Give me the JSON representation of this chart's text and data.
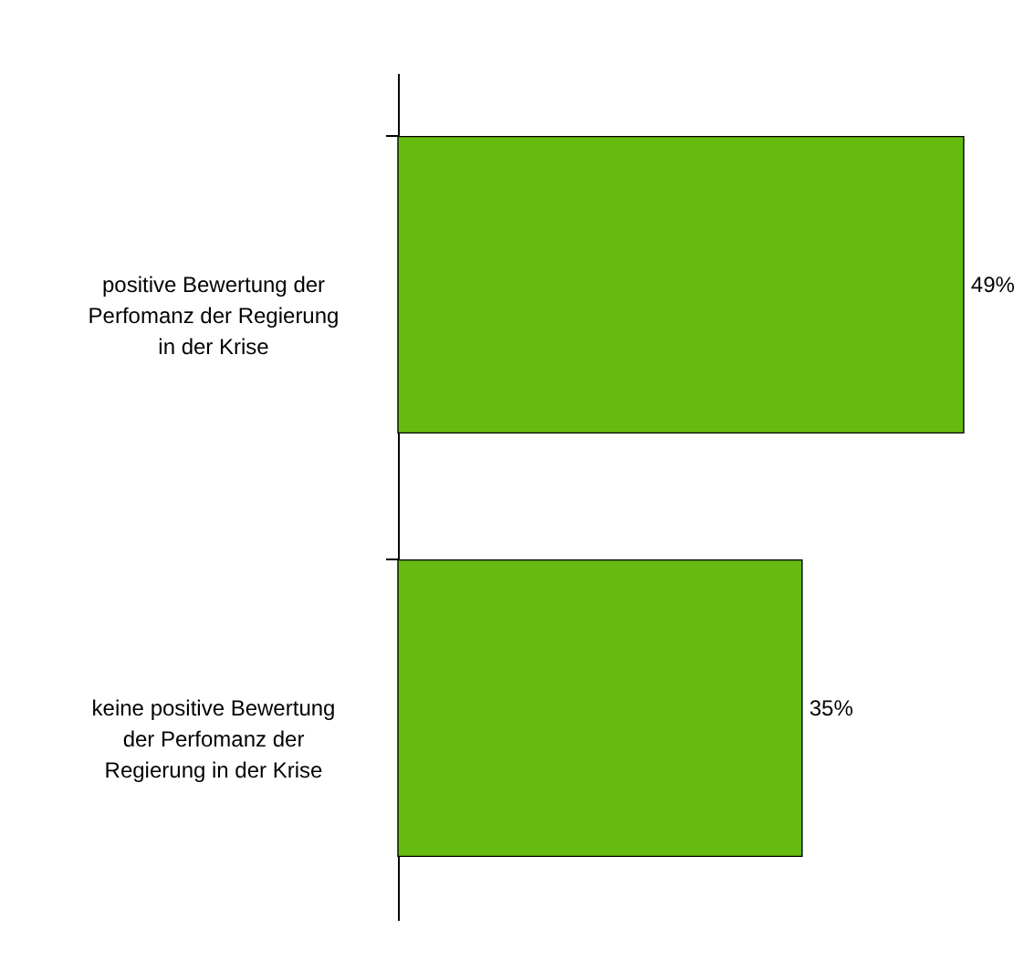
{
  "chart_data": {
    "type": "bar",
    "orientation": "horizontal",
    "categories": [
      "positive Bewertung der Perfomanz der Regierung in der Krise",
      "keine positive Bewertung der Perfomanz der Regierung in der Krise"
    ],
    "values": [
      49,
      35
    ],
    "value_labels": [
      "49%",
      "35%"
    ],
    "color": "#66bb11"
  }
}
